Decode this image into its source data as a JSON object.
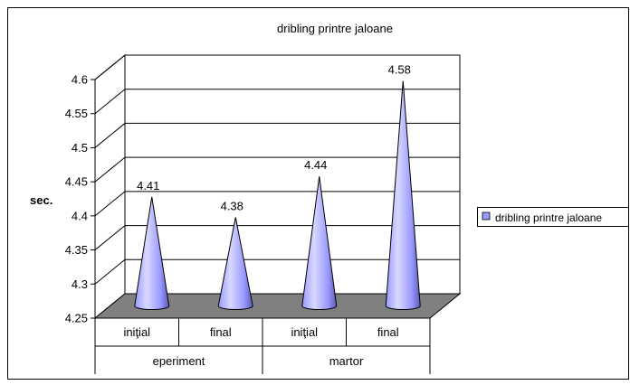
{
  "chart_data": {
    "type": "bar",
    "title": "dribling printre jaloane",
    "xlabel": "",
    "ylabel": "sec.",
    "ylim": [
      4.25,
      4.6
    ],
    "yticks": [
      4.25,
      4.3,
      4.35,
      4.4,
      4.45,
      4.5,
      4.55,
      4.6
    ],
    "grid": true,
    "legend_position": "right",
    "categories": [
      "iniţial",
      "final",
      "iniţial",
      "final"
    ],
    "groups": [
      {
        "label": "eperiment",
        "categories": [
          "iniţial",
          "final"
        ]
      },
      {
        "label": "martor",
        "categories": [
          "iniţial",
          "final"
        ]
      }
    ],
    "series": [
      {
        "name": "dribling printre jaloane",
        "values": [
          4.41,
          4.38,
          4.44,
          4.58
        ],
        "data_labels": [
          "4.41",
          "4.38",
          "4.44",
          "4.58"
        ],
        "color": "#9999ff"
      }
    ],
    "colors": {
      "floor": "#808080",
      "cone_light": "#d8d8ff",
      "cone_mid": "#9999ff",
      "cone_dark": "#5a5ab8",
      "plot_background": "#ffffff",
      "grid": "#000000"
    }
  }
}
